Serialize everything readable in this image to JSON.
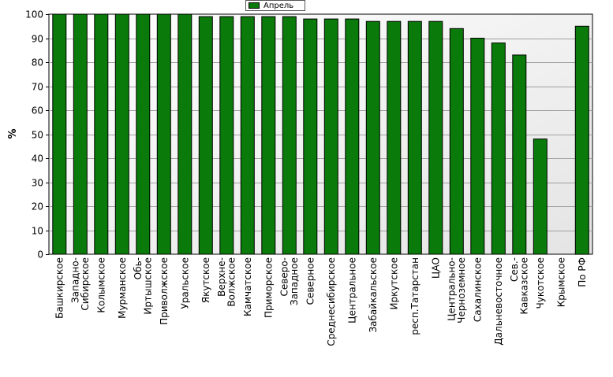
{
  "chart_data": {
    "type": "bar",
    "ylabel": "%",
    "ylim": [
      0,
      100
    ],
    "yticks": [
      0,
      10,
      20,
      30,
      40,
      50,
      60,
      70,
      80,
      90,
      100
    ],
    "grid": true,
    "legend_position": "top-center",
    "series": [
      {
        "name": "Апрель",
        "color": "#0a7a0a",
        "values": [
          100,
          100,
          100,
          100,
          100,
          100,
          100,
          99,
          99,
          99,
          99,
          99,
          98,
          98,
          98,
          97,
          97,
          97,
          97,
          94,
          90,
          88,
          83,
          48,
          null,
          95
        ]
      }
    ],
    "categories": [
      "Башкирское",
      "Западно-Сибирское",
      "Колымское",
      "Мурманское",
      "Обь-Иртышское",
      "Приволжское",
      "Уральское",
      "Якутское",
      "Верхне-Волжское",
      "Камчатское",
      "Приморское",
      "Северо-Западное",
      "Северное",
      "Среднесибирское",
      "Центральное",
      "Забайкальское",
      "Иркутское",
      "респ.Татарстан",
      "ЦАО",
      "Центрально-Черноземное",
      "Сахалинское",
      "Дальневосточное",
      "Сев.-Кавказское",
      "Чукотское",
      "Крымское",
      "По РФ"
    ],
    "category_lines": [
      [
        "Башкирское"
      ],
      [
        "Западно-",
        "Сибирское"
      ],
      [
        "Колымское"
      ],
      [
        "Мурманское"
      ],
      [
        "Обь-",
        "Иртышское"
      ],
      [
        "Приволжское"
      ],
      [
        "Уральское"
      ],
      [
        "Якутское"
      ],
      [
        "Верхне-",
        "Волжское"
      ],
      [
        "Камчатское"
      ],
      [
        "Приморское"
      ],
      [
        "Северо-",
        "Западное"
      ],
      [
        "Северное"
      ],
      [
        "Среднесибирское"
      ],
      [
        "Центральное"
      ],
      [
        "Забайкальское"
      ],
      [
        "Иркутское"
      ],
      [
        "респ.Татарстан"
      ],
      [
        "ЦАО"
      ],
      [
        "Центрально-",
        "Черноземное"
      ],
      [
        "Сахалинское"
      ],
      [
        "Дальневосточное"
      ],
      [
        "Сев.-",
        "Кавказское"
      ],
      [
        "Чукотское"
      ],
      [
        "Крымское"
      ],
      [
        "По РФ"
      ]
    ]
  }
}
